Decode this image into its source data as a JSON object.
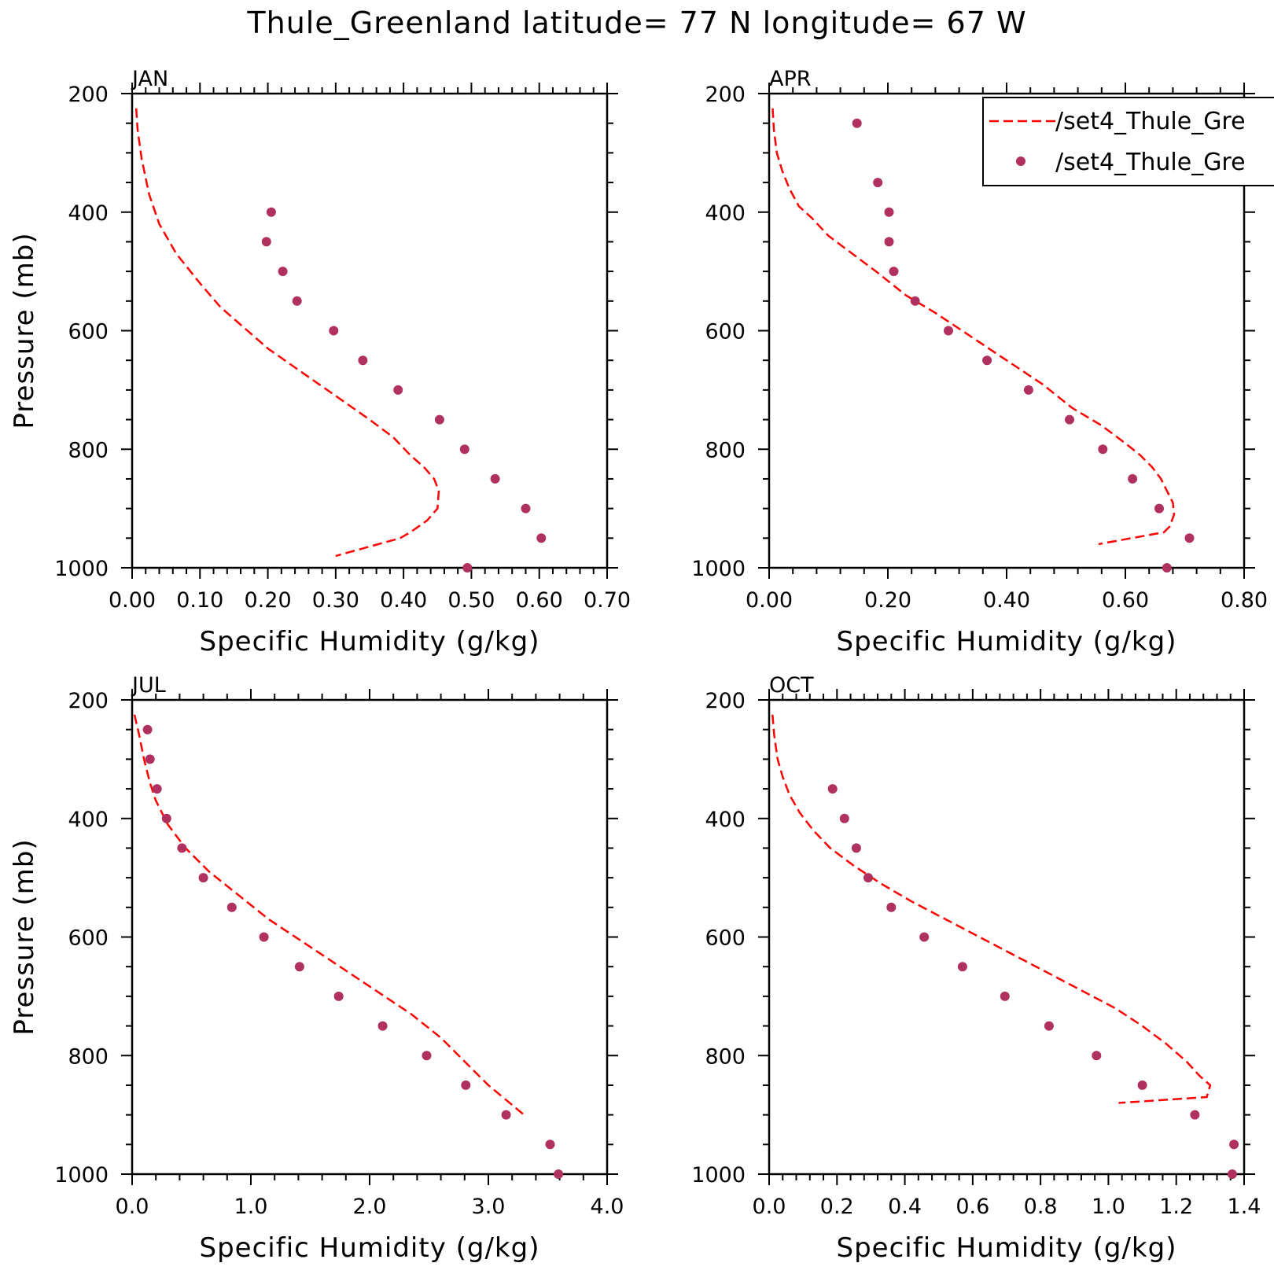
{
  "title": "Thule_Greenland  latitude= 77 N longitude= 67 W",
  "colors": {
    "line": "#ff0000",
    "points": "#b03060",
    "axes": "#000000"
  },
  "legend": {
    "entries": [
      {
        "label": "/set4_Thule_Gre",
        "style": "dashed-line"
      },
      {
        "label": "/set4_Thule_Gre",
        "style": "dot"
      }
    ]
  },
  "chart_data": [
    {
      "type": "scatter",
      "panel": "JAN",
      "xlabel": "Specific Humidity (g/kg)",
      "ylabel": "Pressure (mb)",
      "xlim": [
        0,
        0.7
      ],
      "ylim": [
        200,
        1000
      ],
      "y_inverted": true,
      "xticks": [
        "0.00",
        "0.10",
        "0.20",
        "0.30",
        "0.40",
        "0.50",
        "0.60",
        "0.70"
      ],
      "xtick_values": [
        0,
        0.1,
        0.2,
        0.3,
        0.4,
        0.5,
        0.6,
        0.7
      ],
      "yticks": [
        "200",
        "400",
        "600",
        "800",
        "1000"
      ],
      "ytick_values": [
        200,
        400,
        600,
        800,
        1000
      ],
      "series": [
        {
          "style": "dashed-line",
          "x": [
            0.006,
            0.008,
            0.014,
            0.025,
            0.04,
            0.065,
            0.1,
            0.13,
            0.16,
            0.2,
            0.25,
            0.3,
            0.35,
            0.385,
            0.41,
            0.43,
            0.445,
            0.452,
            0.45,
            0.435,
            0.41,
            0.395,
            0.3
          ],
          "y": [
            225,
            260,
            310,
            370,
            420,
            470,
            520,
            560,
            590,
            630,
            670,
            710,
            750,
            780,
            810,
            830,
            850,
            870,
            900,
            920,
            940,
            950,
            980
          ]
        },
        {
          "style": "points",
          "x": [
            0.205,
            0.198,
            0.222,
            0.243,
            0.297,
            0.34,
            0.392,
            0.453,
            0.49,
            0.535,
            0.58,
            0.603,
            0.494
          ],
          "y": [
            400,
            450,
            500,
            550,
            600,
            650,
            700,
            750,
            800,
            850,
            900,
            950,
            1000
          ]
        }
      ]
    },
    {
      "type": "scatter",
      "panel": "APR",
      "xlabel": "Specific Humidity (g/kg)",
      "ylabel": "",
      "xlim": [
        0,
        0.8
      ],
      "ylim": [
        200,
        1000
      ],
      "y_inverted": true,
      "xticks": [
        "0.00",
        "0.20",
        "0.40",
        "0.60",
        "0.80"
      ],
      "xtick_values": [
        0,
        0.2,
        0.4,
        0.6,
        0.8
      ],
      "yticks": [
        "200",
        "400",
        "600",
        "800",
        "1000"
      ],
      "ytick_values": [
        200,
        400,
        600,
        800,
        1000
      ],
      "show_legend": true,
      "series": [
        {
          "style": "dashed-line",
          "x": [
            0.006,
            0.008,
            0.013,
            0.022,
            0.034,
            0.05,
            0.072,
            0.1,
            0.14,
            0.18,
            0.23,
            0.28,
            0.34,
            0.4,
            0.46,
            0.51,
            0.56,
            0.6,
            0.625,
            0.645,
            0.66,
            0.67,
            0.68,
            0.682,
            0.675,
            0.665,
            0.555
          ],
          "y": [
            225,
            260,
            300,
            330,
            360,
            390,
            410,
            440,
            470,
            500,
            540,
            570,
            610,
            650,
            690,
            730,
            760,
            790,
            810,
            830,
            850,
            870,
            890,
            910,
            930,
            940,
            960
          ]
        },
        {
          "style": "points",
          "x": [
            0.148,
            0.183,
            0.202,
            0.202,
            0.21,
            0.246,
            0.302,
            0.367,
            0.437,
            0.506,
            0.562,
            0.612,
            0.657,
            0.708,
            0.67
          ],
          "y": [
            250,
            350,
            400,
            450,
            500,
            550,
            600,
            650,
            700,
            750,
            800,
            850,
            900,
            950,
            1000
          ]
        }
      ]
    },
    {
      "type": "scatter",
      "panel": "JUL",
      "xlabel": "Specific Humidity (g/kg)",
      "ylabel": "Pressure (mb)",
      "xlim": [
        0,
        4.0
      ],
      "ylim": [
        200,
        1000
      ],
      "y_inverted": true,
      "xticks": [
        "0.0",
        "1.0",
        "2.0",
        "3.0",
        "4.0"
      ],
      "xtick_values": [
        0,
        1,
        2,
        3,
        4
      ],
      "yticks": [
        "200",
        "400",
        "600",
        "800",
        "1000"
      ],
      "ytick_values": [
        200,
        400,
        600,
        800,
        1000
      ],
      "series": [
        {
          "style": "dashed-line",
          "x": [
            0.02,
            0.06,
            0.1,
            0.15,
            0.2,
            0.3,
            0.45,
            0.65,
            0.9,
            1.15,
            1.45,
            1.75,
            2.05,
            2.35,
            2.6,
            2.8,
            3.0,
            3.3
          ],
          "y": [
            225,
            260,
            300,
            340,
            370,
            410,
            450,
            490,
            530,
            570,
            610,
            650,
            690,
            730,
            770,
            810,
            850,
            900
          ]
        },
        {
          "style": "points",
          "x": [
            0.13,
            0.15,
            0.21,
            0.29,
            0.42,
            0.6,
            0.84,
            1.11,
            1.41,
            1.74,
            2.11,
            2.48,
            2.81,
            3.15,
            3.52,
            3.59
          ],
          "y": [
            250,
            300,
            350,
            400,
            450,
            500,
            550,
            600,
            650,
            700,
            750,
            800,
            850,
            900,
            950,
            1000
          ]
        }
      ]
    },
    {
      "type": "scatter",
      "panel": "OCT",
      "xlabel": "Specific Humidity (g/kg)",
      "ylabel": "",
      "xlim": [
        0,
        1.4
      ],
      "ylim": [
        200,
        1000
      ],
      "y_inverted": true,
      "xticks": [
        "0.0",
        "0.2",
        "0.4",
        "0.6",
        "0.8",
        "1.0",
        "1.2",
        "1.4"
      ],
      "xtick_values": [
        0,
        0.2,
        0.4,
        0.6,
        0.8,
        1.0,
        1.2,
        1.4
      ],
      "yticks": [
        "200",
        "400",
        "600",
        "800",
        "1000"
      ],
      "ytick_values": [
        200,
        400,
        600,
        800,
        1000
      ],
      "series": [
        {
          "style": "dashed-line",
          "x": [
            0.01,
            0.015,
            0.025,
            0.04,
            0.06,
            0.09,
            0.13,
            0.18,
            0.25,
            0.33,
            0.42,
            0.52,
            0.62,
            0.72,
            0.82,
            0.92,
            1.02,
            1.1,
            1.17,
            1.23,
            1.27,
            1.3,
            1.29,
            1.03
          ],
          "y": [
            225,
            260,
            300,
            330,
            360,
            390,
            420,
            450,
            480,
            510,
            540,
            570,
            600,
            630,
            660,
            690,
            720,
            750,
            780,
            810,
            835,
            850,
            870,
            880
          ]
        },
        {
          "style": "points",
          "x": [
            0.187,
            0.222,
            0.257,
            0.292,
            0.36,
            0.457,
            0.57,
            0.695,
            0.825,
            0.965,
            1.1,
            1.255,
            1.37,
            1.365
          ],
          "y": [
            350,
            400,
            450,
            500,
            550,
            600,
            650,
            700,
            750,
            800,
            850,
            900,
            950,
            1000
          ]
        }
      ]
    }
  ]
}
